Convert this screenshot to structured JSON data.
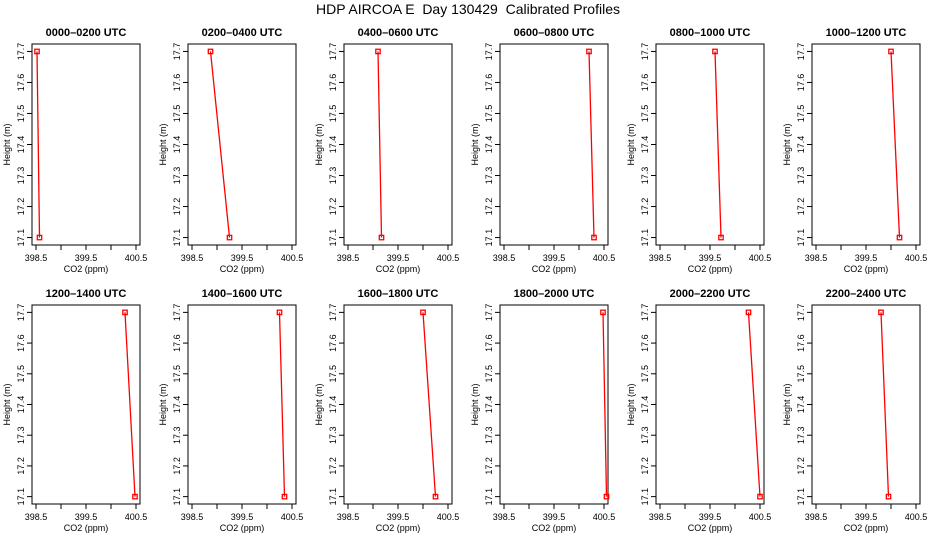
{
  "title": "HDP AIRCOA E  Day 130429  Calibrated Profiles",
  "colors": {
    "series": "#ff0000",
    "axis": "#000000",
    "background": "#ffffff"
  },
  "chart_data": [
    {
      "type": "line",
      "title": "0000–0200 UTC",
      "xlabel": "CO2 (ppm)",
      "ylabel": "Height (m)",
      "xlim": [
        398.5,
        400.5
      ],
      "ylim": [
        17.1,
        17.7
      ],
      "xticks": [
        "398.5",
        "399.5",
        "400.5"
      ],
      "yticks": [
        "17.1",
        "17.2",
        "17.3",
        "17.4",
        "17.5",
        "17.6",
        "17.7"
      ],
      "points": [
        {
          "x": 398.52,
          "y": 17.7
        },
        {
          "x": 398.57,
          "y": 17.1
        }
      ],
      "grid": false
    },
    {
      "type": "line",
      "title": "0200–0400 UTC",
      "xlabel": "CO2 (ppm)",
      "ylabel": "Height (m)",
      "xlim": [
        398.5,
        400.5
      ],
      "ylim": [
        17.1,
        17.7
      ],
      "xticks": [
        "398.5",
        "399.5",
        "400.5"
      ],
      "yticks": [
        "17.1",
        "17.2",
        "17.3",
        "17.4",
        "17.5",
        "17.6",
        "17.7"
      ],
      "points": [
        {
          "x": 398.87,
          "y": 17.7
        },
        {
          "x": 399.25,
          "y": 17.1
        }
      ],
      "grid": false
    },
    {
      "type": "line",
      "title": "0400–0600 UTC",
      "xlabel": "CO2 (ppm)",
      "ylabel": "Height (m)",
      "xlim": [
        398.5,
        400.5
      ],
      "ylim": [
        17.1,
        17.7
      ],
      "xticks": [
        "398.5",
        "399.5",
        "400.5"
      ],
      "yticks": [
        "17.1",
        "17.2",
        "17.3",
        "17.4",
        "17.5",
        "17.6",
        "17.7"
      ],
      "points": [
        {
          "x": 399.1,
          "y": 17.7
        },
        {
          "x": 399.17,
          "y": 17.1
        }
      ],
      "grid": false
    },
    {
      "type": "line",
      "title": "0600–0800 UTC",
      "xlabel": "CO2 (ppm)",
      "ylabel": "Height (m)",
      "xlim": [
        398.5,
        400.5
      ],
      "ylim": [
        17.1,
        17.7
      ],
      "xticks": [
        "398.5",
        "399.5",
        "400.5"
      ],
      "yticks": [
        "17.1",
        "17.2",
        "17.3",
        "17.4",
        "17.5",
        "17.6",
        "17.7"
      ],
      "points": [
        {
          "x": 400.2,
          "y": 17.7
        },
        {
          "x": 400.3,
          "y": 17.1
        }
      ],
      "grid": false
    },
    {
      "type": "line",
      "title": "0800–1000 UTC",
      "xlabel": "CO2 (ppm)",
      "ylabel": "Height (m)",
      "xlim": [
        398.5,
        400.5
      ],
      "ylim": [
        17.1,
        17.7
      ],
      "xticks": [
        "398.5",
        "399.5",
        "400.5"
      ],
      "yticks": [
        "17.1",
        "17.2",
        "17.3",
        "17.4",
        "17.5",
        "17.6",
        "17.7"
      ],
      "points": [
        {
          "x": 399.6,
          "y": 17.7
        },
        {
          "x": 399.72,
          "y": 17.1
        }
      ],
      "grid": false
    },
    {
      "type": "line",
      "title": "1000–1200 UTC",
      "xlabel": "CO2 (ppm)",
      "ylabel": "Height (m)",
      "xlim": [
        398.5,
        400.5
      ],
      "ylim": [
        17.1,
        17.7
      ],
      "xticks": [
        "398.5",
        "399.5",
        "400.5"
      ],
      "yticks": [
        "17.1",
        "17.2",
        "17.3",
        "17.4",
        "17.5",
        "17.6",
        "17.7"
      ],
      "points": [
        {
          "x": 400.0,
          "y": 17.7
        },
        {
          "x": 400.17,
          "y": 17.1
        }
      ],
      "grid": false
    },
    {
      "type": "line",
      "title": "1200–1400 UTC",
      "xlabel": "CO2 (ppm)",
      "ylabel": "Height (m)",
      "xlim": [
        398.5,
        400.5
      ],
      "ylim": [
        17.1,
        17.7
      ],
      "xticks": [
        "398.5",
        "399.5",
        "400.5"
      ],
      "yticks": [
        "17.1",
        "17.2",
        "17.3",
        "17.4",
        "17.5",
        "17.6",
        "17.7"
      ],
      "points": [
        {
          "x": 400.28,
          "y": 17.7
        },
        {
          "x": 400.48,
          "y": 17.1
        }
      ],
      "grid": false
    },
    {
      "type": "line",
      "title": "1400–1600 UTC",
      "xlabel": "CO2 (ppm)",
      "ylabel": "Height (m)",
      "xlim": [
        398.5,
        400.5
      ],
      "ylim": [
        17.1,
        17.7
      ],
      "xticks": [
        "398.5",
        "399.5",
        "400.5"
      ],
      "yticks": [
        "17.1",
        "17.2",
        "17.3",
        "17.4",
        "17.5",
        "17.6",
        "17.7"
      ],
      "points": [
        {
          "x": 400.25,
          "y": 17.7
        },
        {
          "x": 400.35,
          "y": 17.1
        }
      ],
      "grid": false
    },
    {
      "type": "line",
      "title": "1600–1800 UTC",
      "xlabel": "CO2 (ppm)",
      "ylabel": "Height (m)",
      "xlim": [
        398.5,
        400.5
      ],
      "ylim": [
        17.1,
        17.7
      ],
      "xticks": [
        "398.5",
        "399.5",
        "400.5"
      ],
      "yticks": [
        "17.1",
        "17.2",
        "17.3",
        "17.4",
        "17.5",
        "17.6",
        "17.7"
      ],
      "points": [
        {
          "x": 400.0,
          "y": 17.7
        },
        {
          "x": 400.25,
          "y": 17.1
        }
      ],
      "grid": false
    },
    {
      "type": "line",
      "title": "1800–2000 UTC",
      "xlabel": "CO2 (ppm)",
      "ylabel": "Height (m)",
      "xlim": [
        398.5,
        400.5
      ],
      "ylim": [
        17.1,
        17.7
      ],
      "xticks": [
        "398.5",
        "399.5",
        "400.5"
      ],
      "yticks": [
        "17.1",
        "17.2",
        "17.3",
        "17.4",
        "17.5",
        "17.6",
        "17.7"
      ],
      "points": [
        {
          "x": 400.48,
          "y": 17.7
        },
        {
          "x": 400.55,
          "y": 17.1
        }
      ],
      "grid": false
    },
    {
      "type": "line",
      "title": "2000–2200 UTC",
      "xlabel": "CO2 (ppm)",
      "ylabel": "Height (m)",
      "xlim": [
        398.5,
        400.5
      ],
      "ylim": [
        17.1,
        17.7
      ],
      "xticks": [
        "398.5",
        "399.5",
        "400.5"
      ],
      "yticks": [
        "17.1",
        "17.2",
        "17.3",
        "17.4",
        "17.5",
        "17.6",
        "17.7"
      ],
      "points": [
        {
          "x": 400.27,
          "y": 17.7
        },
        {
          "x": 400.5,
          "y": 17.1
        }
      ],
      "grid": false
    },
    {
      "type": "line",
      "title": "2200–2400 UTC",
      "xlabel": "CO2 (ppm)",
      "ylabel": "Height (m)",
      "xlim": [
        398.5,
        400.5
      ],
      "ylim": [
        17.1,
        17.7
      ],
      "xticks": [
        "398.5",
        "399.5",
        "400.5"
      ],
      "yticks": [
        "17.1",
        "17.2",
        "17.3",
        "17.4",
        "17.5",
        "17.6",
        "17.7"
      ],
      "points": [
        {
          "x": 399.8,
          "y": 17.7
        },
        {
          "x": 399.95,
          "y": 17.1
        }
      ],
      "grid": false
    }
  ]
}
